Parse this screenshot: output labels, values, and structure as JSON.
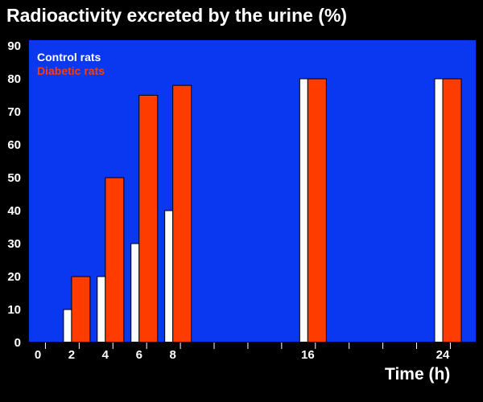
{
  "colors": {
    "background": "#000000",
    "plot_area": "#0a38f0",
    "control": "#ffffff",
    "diabetic": "#ff3c00",
    "text": "#ffffff",
    "axis": "#000000"
  },
  "chart_data": {
    "type": "bar",
    "title": "Radioactivity excreted by the urine (%)",
    "xlabel": "Time (h)",
    "ylabel": "",
    "ylim": [
      0,
      90
    ],
    "yticks": [
      0,
      10,
      20,
      30,
      40,
      50,
      60,
      70,
      80,
      90
    ],
    "xlim": [
      -0.5,
      25.5
    ],
    "categories": [
      "0",
      "2",
      "4",
      "6",
      "8",
      "16",
      "24"
    ],
    "x": [
      0,
      2,
      4,
      6,
      8,
      16,
      24
    ],
    "series": [
      {
        "name": "Control rats",
        "values": [
          0,
          10,
          20,
          30,
          40,
          80,
          80
        ]
      },
      {
        "name": "Diabetic rats",
        "values": [
          0,
          20,
          50,
          75,
          78,
          80,
          80
        ]
      }
    ],
    "grid": false,
    "legend_position": "top-left"
  }
}
